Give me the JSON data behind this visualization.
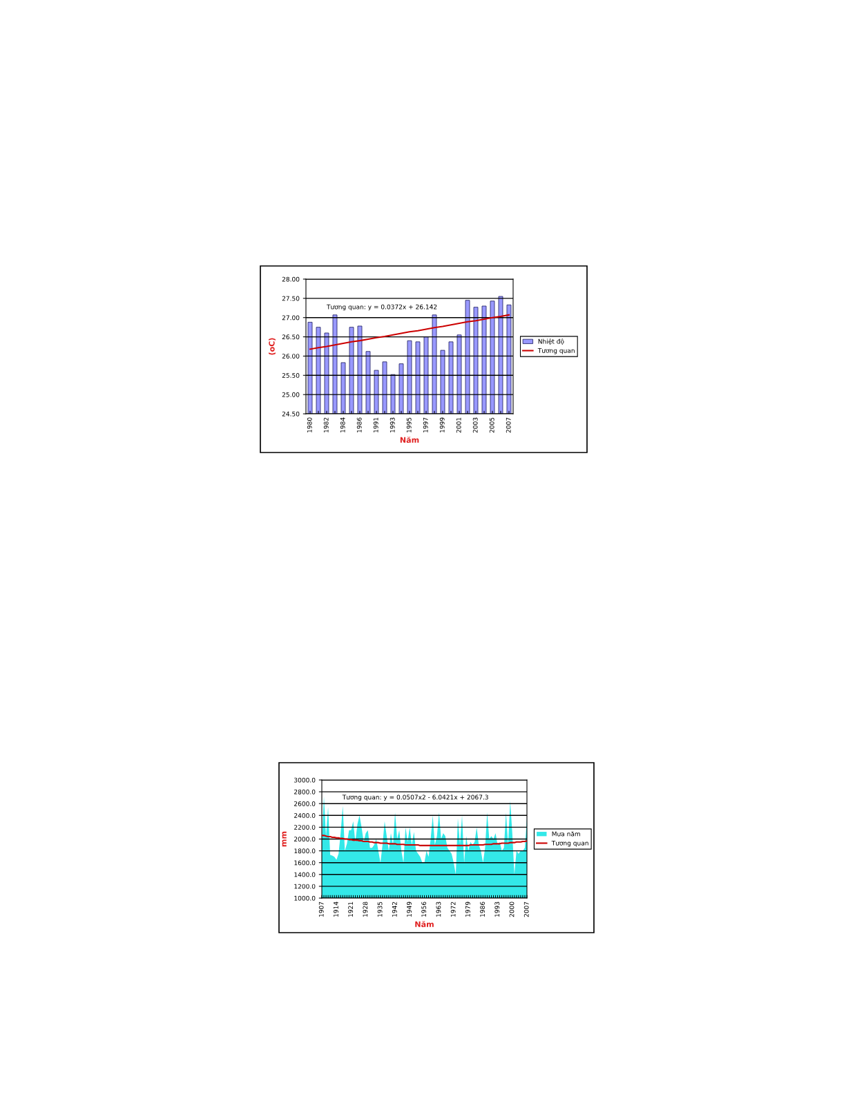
{
  "chart_data": [
    {
      "type": "bar",
      "xlabel": "Năm",
      "ylabel": "(oC)",
      "categories": [
        "1980",
        null,
        "1982",
        null,
        "1984",
        null,
        "1986",
        null,
        "1991",
        null,
        "1993",
        null,
        "1995",
        null,
        "1997",
        null,
        "1999",
        null,
        "2001",
        null,
        "2003",
        null,
        "2005",
        null,
        "2007"
      ],
      "series": [
        {
          "name": "Nhiệt độ",
          "type": "bar",
          "color": "#9999ff",
          "values": [
            26.88,
            26.75,
            26.6,
            27.07,
            25.83,
            26.75,
            26.78,
            26.12,
            25.63,
            25.85,
            25.52,
            25.8,
            26.4,
            26.37,
            26.5,
            27.07,
            26.15,
            26.37,
            26.55,
            27.45,
            27.27,
            27.3,
            27.43,
            27.55,
            27.33
          ]
        },
        {
          "name": "Tương quan",
          "type": "line",
          "color": "#cc0000",
          "values": [
            26.18,
            26.22,
            26.25,
            26.29,
            26.33,
            26.37,
            26.4,
            26.44,
            26.48,
            26.51,
            26.55,
            26.59,
            26.63,
            26.66,
            26.7,
            26.74,
            26.77,
            26.81,
            26.85,
            26.89,
            26.92,
            26.96,
            27.0,
            27.03,
            27.07
          ]
        }
      ],
      "ylim": [
        24.5,
        28.0
      ],
      "yticks": [
        {
          "value": 24.5,
          "label": "24.50"
        },
        {
          "value": 25.0,
          "label": "25.00"
        },
        {
          "value": 25.5,
          "label": "25.50"
        },
        {
          "value": 26.0,
          "label": "26.00"
        },
        {
          "value": 26.5,
          "label": "26.50"
        },
        {
          "value": 27.0,
          "label": "27.00"
        },
        {
          "value": 27.5,
          "label": "27.50"
        },
        {
          "value": 28.0,
          "label": "28.00"
        }
      ],
      "grid": "y",
      "legend": "right",
      "annotations": [
        "Tương quan: y = 0.0372x + 26.142"
      ]
    },
    {
      "type": "area",
      "xlabel": "Năm",
      "ylabel": "mm",
      "categories": [
        "1907",
        null,
        null,
        null,
        null,
        null,
        null,
        "1914",
        null,
        null,
        null,
        null,
        null,
        null,
        "1921",
        null,
        null,
        null,
        null,
        null,
        null,
        "1928",
        null,
        null,
        null,
        null,
        null,
        null,
        "1935",
        null,
        null,
        null,
        null,
        null,
        null,
        "1942",
        null,
        null,
        null,
        null,
        null,
        null,
        "1949",
        null,
        null,
        null,
        null,
        null,
        null,
        "1956",
        null,
        null,
        null,
        null,
        null,
        null,
        "1963",
        null,
        null,
        null,
        null,
        null,
        null,
        "1972",
        null,
        null,
        null,
        null,
        null,
        null,
        "1979",
        null,
        null,
        null,
        null,
        null,
        null,
        "1986",
        null,
        null,
        null,
        null,
        null,
        null,
        "1993",
        null,
        null,
        null,
        null,
        null,
        null,
        "2000",
        null,
        null,
        null,
        null,
        null,
        null,
        "2007"
      ],
      "series": [
        {
          "name": "Mưa năm",
          "type": "area",
          "color": "#33e8e8",
          "values": [
            1950,
            2720,
            2050,
            2540,
            1730,
            1720,
            1700,
            1650,
            1750,
            2100,
            2560,
            1800,
            1920,
            2150,
            2150,
            2300,
            1950,
            2250,
            2400,
            2200,
            1950,
            2100,
            2150,
            1850,
            1850,
            1900,
            2000,
            1800,
            1600,
            1900,
            2300,
            2050,
            1800,
            2100,
            1900,
            2450,
            2000,
            2150,
            1800,
            1600,
            2200,
            1950,
            2200,
            1900,
            2120,
            1800,
            1750,
            1700,
            1600,
            1600,
            1800,
            1700,
            2000,
            2400,
            1900,
            2050,
            2450,
            2000,
            2100,
            2050,
            1850,
            1800,
            1750,
            1600,
            1400,
            2350,
            1900,
            2400,
            1600,
            2050,
            1800,
            1950,
            1900,
            1950,
            2200,
            1900,
            1800,
            1600,
            1850,
            2450,
            2000,
            2050,
            2000,
            2100,
            1900,
            1950,
            1800,
            1850,
            2450,
            1900,
            2650,
            2100,
            1400,
            1800,
            1750,
            1800,
            1800,
            1850,
            2350
          ]
        },
        {
          "name": "Tương quan",
          "type": "line",
          "color": "#cc0000",
          "values": [
            2060,
            2060,
            2050,
            2040,
            2040,
            2030,
            2030,
            2020,
            2020,
            2010,
            2010,
            2000,
            2000,
            1990,
            1990,
            1980,
            1980,
            1980,
            1970,
            1970,
            1960,
            1960,
            1960,
            1950,
            1950,
            1940,
            1940,
            1940,
            1930,
            1930,
            1930,
            1930,
            1920,
            1920,
            1920,
            1920,
            1910,
            1910,
            1910,
            1910,
            1900,
            1900,
            1900,
            1900,
            1900,
            1900,
            1900,
            1890,
            1890,
            1890,
            1890,
            1890,
            1890,
            1890,
            1890,
            1890,
            1890,
            1890,
            1890,
            1890,
            1890,
            1890,
            1890,
            1890,
            1890,
            1890,
            1890,
            1890,
            1890,
            1890,
            1890,
            1900,
            1900,
            1900,
            1900,
            1900,
            1900,
            1900,
            1910,
            1910,
            1910,
            1910,
            1920,
            1920,
            1920,
            1920,
            1930,
            1930,
            1930,
            1930,
            1940,
            1940,
            1940,
            1950,
            1950,
            1950,
            1960,
            1960,
            1970
          ]
        }
      ],
      "ylim": [
        1000,
        3000
      ],
      "yticks": [
        {
          "value": 1000,
          "label": "1000.0"
        },
        {
          "value": 1200,
          "label": "1200.0"
        },
        {
          "value": 1400,
          "label": "1400.0"
        },
        {
          "value": 1600,
          "label": "1600.0"
        },
        {
          "value": 1800,
          "label": "1800.0"
        },
        {
          "value": 2000,
          "label": "2000.0"
        },
        {
          "value": 2200,
          "label": "2200.0"
        },
        {
          "value": 2400,
          "label": "2400.0"
        },
        {
          "value": 2600,
          "label": "2600.0"
        },
        {
          "value": 2800,
          "label": "2800.0"
        },
        {
          "value": 3000,
          "label": "3000.0"
        }
      ],
      "grid": "y",
      "legend": "right",
      "annotations": [
        "Tương quan: y = 0.0507x2 - 6.0421x + 2067.3"
      ]
    }
  ]
}
